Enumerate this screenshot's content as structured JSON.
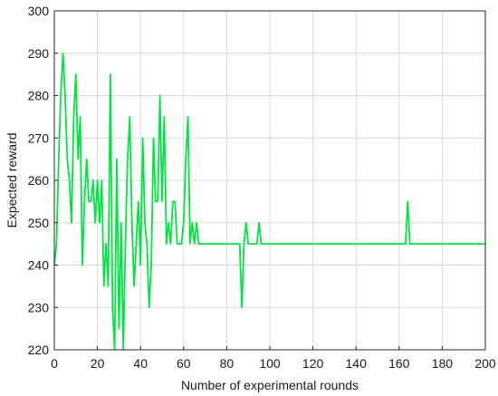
{
  "chart_data": {
    "type": "line",
    "title": "",
    "xlabel": "Number of experimental rounds",
    "ylabel": "Expected reward",
    "xlim": [
      0,
      200
    ],
    "ylim": [
      220,
      300
    ],
    "xticks": [
      0,
      20,
      40,
      60,
      80,
      100,
      120,
      140,
      160,
      180,
      200
    ],
    "yticks": [
      220,
      230,
      240,
      250,
      260,
      270,
      280,
      290,
      300
    ],
    "grid": true,
    "legend": "none",
    "series": [
      {
        "color": "#00e640",
        "x": [
          0,
          1,
          2,
          3,
          4,
          5,
          6,
          7,
          8,
          9,
          10,
          11,
          12,
          13,
          14,
          15,
          16,
          17,
          18,
          19,
          20,
          21,
          22,
          23,
          24,
          25,
          26,
          27,
          28,
          29,
          30,
          31,
          32,
          33,
          34,
          35,
          36,
          37,
          38,
          39,
          40,
          41,
          42,
          43,
          44,
          45,
          46,
          47,
          48,
          49,
          50,
          51,
          52,
          53,
          54,
          55,
          56,
          57,
          58,
          59,
          60,
          61,
          62,
          63,
          64,
          65,
          66,
          67,
          68,
          69,
          70,
          85,
          86,
          87,
          88,
          89,
          90,
          93,
          94,
          95,
          96,
          163,
          164,
          165,
          200
        ],
        "values": [
          240,
          245,
          265,
          280,
          290,
          280,
          265,
          260,
          250,
          275,
          285,
          265,
          275,
          240,
          255,
          265,
          255,
          255,
          260,
          250,
          260,
          250,
          260,
          235,
          245,
          235,
          285,
          230,
          220,
          265,
          225,
          250,
          220,
          245,
          265,
          275,
          250,
          235,
          245,
          255,
          240,
          270,
          250,
          245,
          230,
          240,
          270,
          255,
          255,
          280,
          255,
          275,
          245,
          250,
          245,
          255,
          255,
          245,
          245,
          245,
          250,
          265,
          275,
          245,
          250,
          245,
          250,
          245,
          245,
          245,
          245,
          245,
          245,
          230,
          245,
          250,
          245,
          245,
          245,
          250,
          245,
          245,
          255,
          245,
          245
        ]
      }
    ]
  }
}
